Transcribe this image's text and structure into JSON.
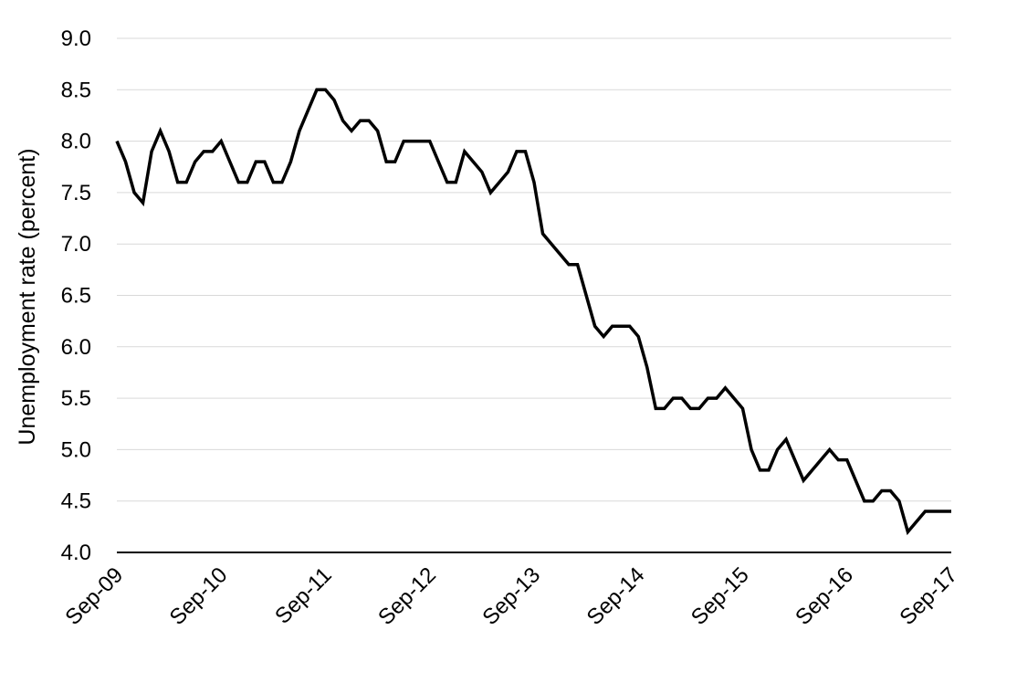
{
  "chart_data": {
    "type": "line",
    "ylabel": "Unemployment rate (percent)",
    "ylim": [
      4.0,
      9.0
    ],
    "y_ticks": [
      "9.0",
      "8.5",
      "8.0",
      "7.5",
      "7.0",
      "6.5",
      "6.0",
      "5.5",
      "5.0",
      "4.5",
      "4.0"
    ],
    "x_ticks": [
      "Sep-09",
      "Sep-10",
      "Sep-11",
      "Sep-12",
      "Sep-13",
      "Sep-14",
      "Sep-15",
      "Sep-16",
      "Sep-17"
    ],
    "grid": true,
    "x_start": "Sep-09",
    "x_end": "Sep-17",
    "series": [
      {
        "line_color": "#000000",
        "x": [
          "Sep-09",
          "Oct-09",
          "Nov-09",
          "Dec-09",
          "Jan-10",
          "Feb-10",
          "Mar-10",
          "Apr-10",
          "May-10",
          "Jun-10",
          "Jul-10",
          "Aug-10",
          "Sep-10",
          "Oct-10",
          "Nov-10",
          "Dec-10",
          "Jan-11",
          "Feb-11",
          "Mar-11",
          "Apr-11",
          "May-11",
          "Jun-11",
          "Jul-11",
          "Aug-11",
          "Sep-11",
          "Oct-11",
          "Nov-11",
          "Dec-11",
          "Jan-12",
          "Feb-12",
          "Mar-12",
          "Apr-12",
          "May-12",
          "Jun-12",
          "Jul-12",
          "Aug-12",
          "Sep-12",
          "Oct-12",
          "Nov-12",
          "Dec-12",
          "Jan-13",
          "Feb-13",
          "Mar-13",
          "Apr-13",
          "May-13",
          "Jun-13",
          "Jul-13",
          "Aug-13",
          "Sep-13",
          "Oct-13",
          "Nov-13",
          "Dec-13",
          "Jan-14",
          "Feb-14",
          "Mar-14",
          "Apr-14",
          "May-14",
          "Jun-14",
          "Jul-14",
          "Aug-14",
          "Sep-14",
          "Oct-14",
          "Nov-14",
          "Dec-14",
          "Jan-15",
          "Feb-15",
          "Mar-15",
          "Apr-15",
          "May-15",
          "Jun-15",
          "Jul-15",
          "Aug-15",
          "Sep-15",
          "Oct-15",
          "Nov-15",
          "Dec-15",
          "Jan-16",
          "Feb-16",
          "Mar-16",
          "Apr-16",
          "May-16",
          "Jun-16",
          "Jul-16",
          "Aug-16",
          "Sep-16",
          "Oct-16",
          "Nov-16",
          "Dec-16",
          "Jan-17",
          "Feb-17",
          "Mar-17",
          "Apr-17",
          "May-17",
          "Jun-17",
          "Jul-17",
          "Aug-17",
          "Sep-17"
        ],
        "values": [
          8.0,
          7.8,
          7.5,
          7.4,
          7.9,
          8.1,
          7.9,
          7.6,
          7.6,
          7.8,
          7.9,
          7.9,
          8.0,
          7.8,
          7.6,
          7.6,
          7.8,
          7.8,
          7.6,
          7.6,
          7.8,
          8.1,
          8.3,
          8.5,
          8.5,
          8.4,
          8.2,
          8.1,
          8.2,
          8.2,
          8.1,
          7.8,
          7.8,
          8.0,
          8.0,
          8.0,
          8.0,
          7.8,
          7.6,
          7.6,
          7.9,
          7.8,
          7.7,
          7.5,
          7.6,
          7.7,
          7.9,
          7.9,
          7.6,
          7.1,
          7.0,
          6.9,
          6.8,
          6.8,
          6.5,
          6.2,
          6.1,
          6.2,
          6.2,
          6.2,
          6.1,
          5.8,
          5.4,
          5.4,
          5.5,
          5.5,
          5.4,
          5.4,
          5.5,
          5.5,
          5.6,
          5.5,
          5.4,
          5.0,
          4.8,
          4.8,
          5.0,
          5.1,
          4.9,
          4.7,
          4.8,
          4.9,
          5.0,
          4.9,
          4.9,
          4.7,
          4.5,
          4.5,
          4.6,
          4.6,
          4.5,
          4.2,
          4.3,
          4.4,
          4.4,
          4.4,
          4.4
        ]
      }
    ]
  }
}
